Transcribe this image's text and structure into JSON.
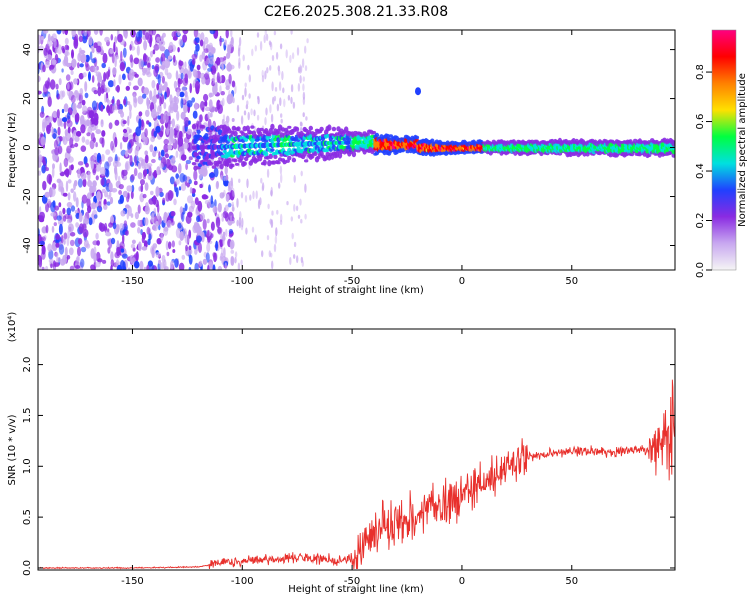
{
  "figure": {
    "title": "C2E6.2025.308.21.33.R08"
  },
  "colors": {
    "line": "#e8302c",
    "colormap": [
      "#f5f5f5",
      "#c8a8f0",
      "#8a2be2",
      "#2040ff",
      "#00e0e0",
      "#00ff40",
      "#ffe000",
      "#ff8000",
      "#ff0000",
      "#ff0080"
    ]
  },
  "chart_data": [
    {
      "type": "heatmap",
      "title": "",
      "xlabel": "Height of straight line (km)",
      "ylabel": "Frequency (Hz)",
      "xlim": [
        -193,
        97
      ],
      "ylim": [
        -50,
        48
      ],
      "x_ticks": [
        -150,
        -100,
        -50,
        0,
        50
      ],
      "y_ticks": [
        -40,
        -20,
        0,
        20,
        40
      ],
      "colorbar": {
        "label": "Normalized spectral amplitude",
        "range": [
          0.0,
          0.97
        ],
        "ticks": [
          0.0,
          0.2,
          0.4,
          0.6,
          0.8
        ]
      },
      "features": {
        "noise_region_x": [
          -193,
          -110
        ],
        "signal_band_center_hz": 0,
        "signal_band_halfwidth_hz": [
          [
            -120,
            8
          ],
          [
            -60,
            6
          ],
          [
            -30,
            3
          ],
          [
            0,
            2
          ],
          [
            95,
            3
          ]
        ],
        "peak_amplitude_region_x": [
          -40,
          10
        ],
        "isolated_blob": {
          "x": -20,
          "y": 23
        }
      }
    },
    {
      "type": "line",
      "title": "",
      "xlabel": "Height of straight line (km)",
      "ylabel": "SNR (10 * v/v)",
      "scale_note": "(x10⁴)",
      "xlim": [
        -193,
        97
      ],
      "ylim": [
        -0.02,
        2.35
      ],
      "x_ticks": [
        -150,
        -100,
        -50,
        0,
        50
      ],
      "y_ticks": [
        0.0,
        0.5,
        1.0,
        1.5,
        2.0
      ],
      "series": [
        {
          "x": [
            -193,
            -150,
            -120,
            -112,
            -100,
            -90,
            -80,
            -70,
            -60,
            -55,
            -50,
            -45,
            -40,
            -35,
            -30,
            -25,
            -20,
            -15,
            -10,
            -5,
            0,
            5,
            10,
            15,
            20,
            25,
            30,
            35,
            40,
            45,
            50,
            55,
            60,
            65,
            70,
            75,
            80,
            85,
            90,
            95,
            97
          ],
          "values": [
            0.0,
            0.0,
            0.01,
            0.04,
            0.06,
            0.08,
            0.1,
            0.1,
            0.08,
            0.06,
            0.1,
            0.22,
            0.35,
            0.42,
            0.45,
            0.48,
            0.52,
            0.58,
            0.62,
            0.66,
            0.72,
            0.78,
            0.84,
            0.9,
            0.98,
            1.04,
            1.08,
            1.1,
            1.12,
            1.14,
            1.15,
            1.15,
            1.15,
            1.14,
            1.15,
            1.16,
            1.16,
            1.17,
            1.18,
            1.2,
            1.22
          ]
        }
      ]
    }
  ]
}
